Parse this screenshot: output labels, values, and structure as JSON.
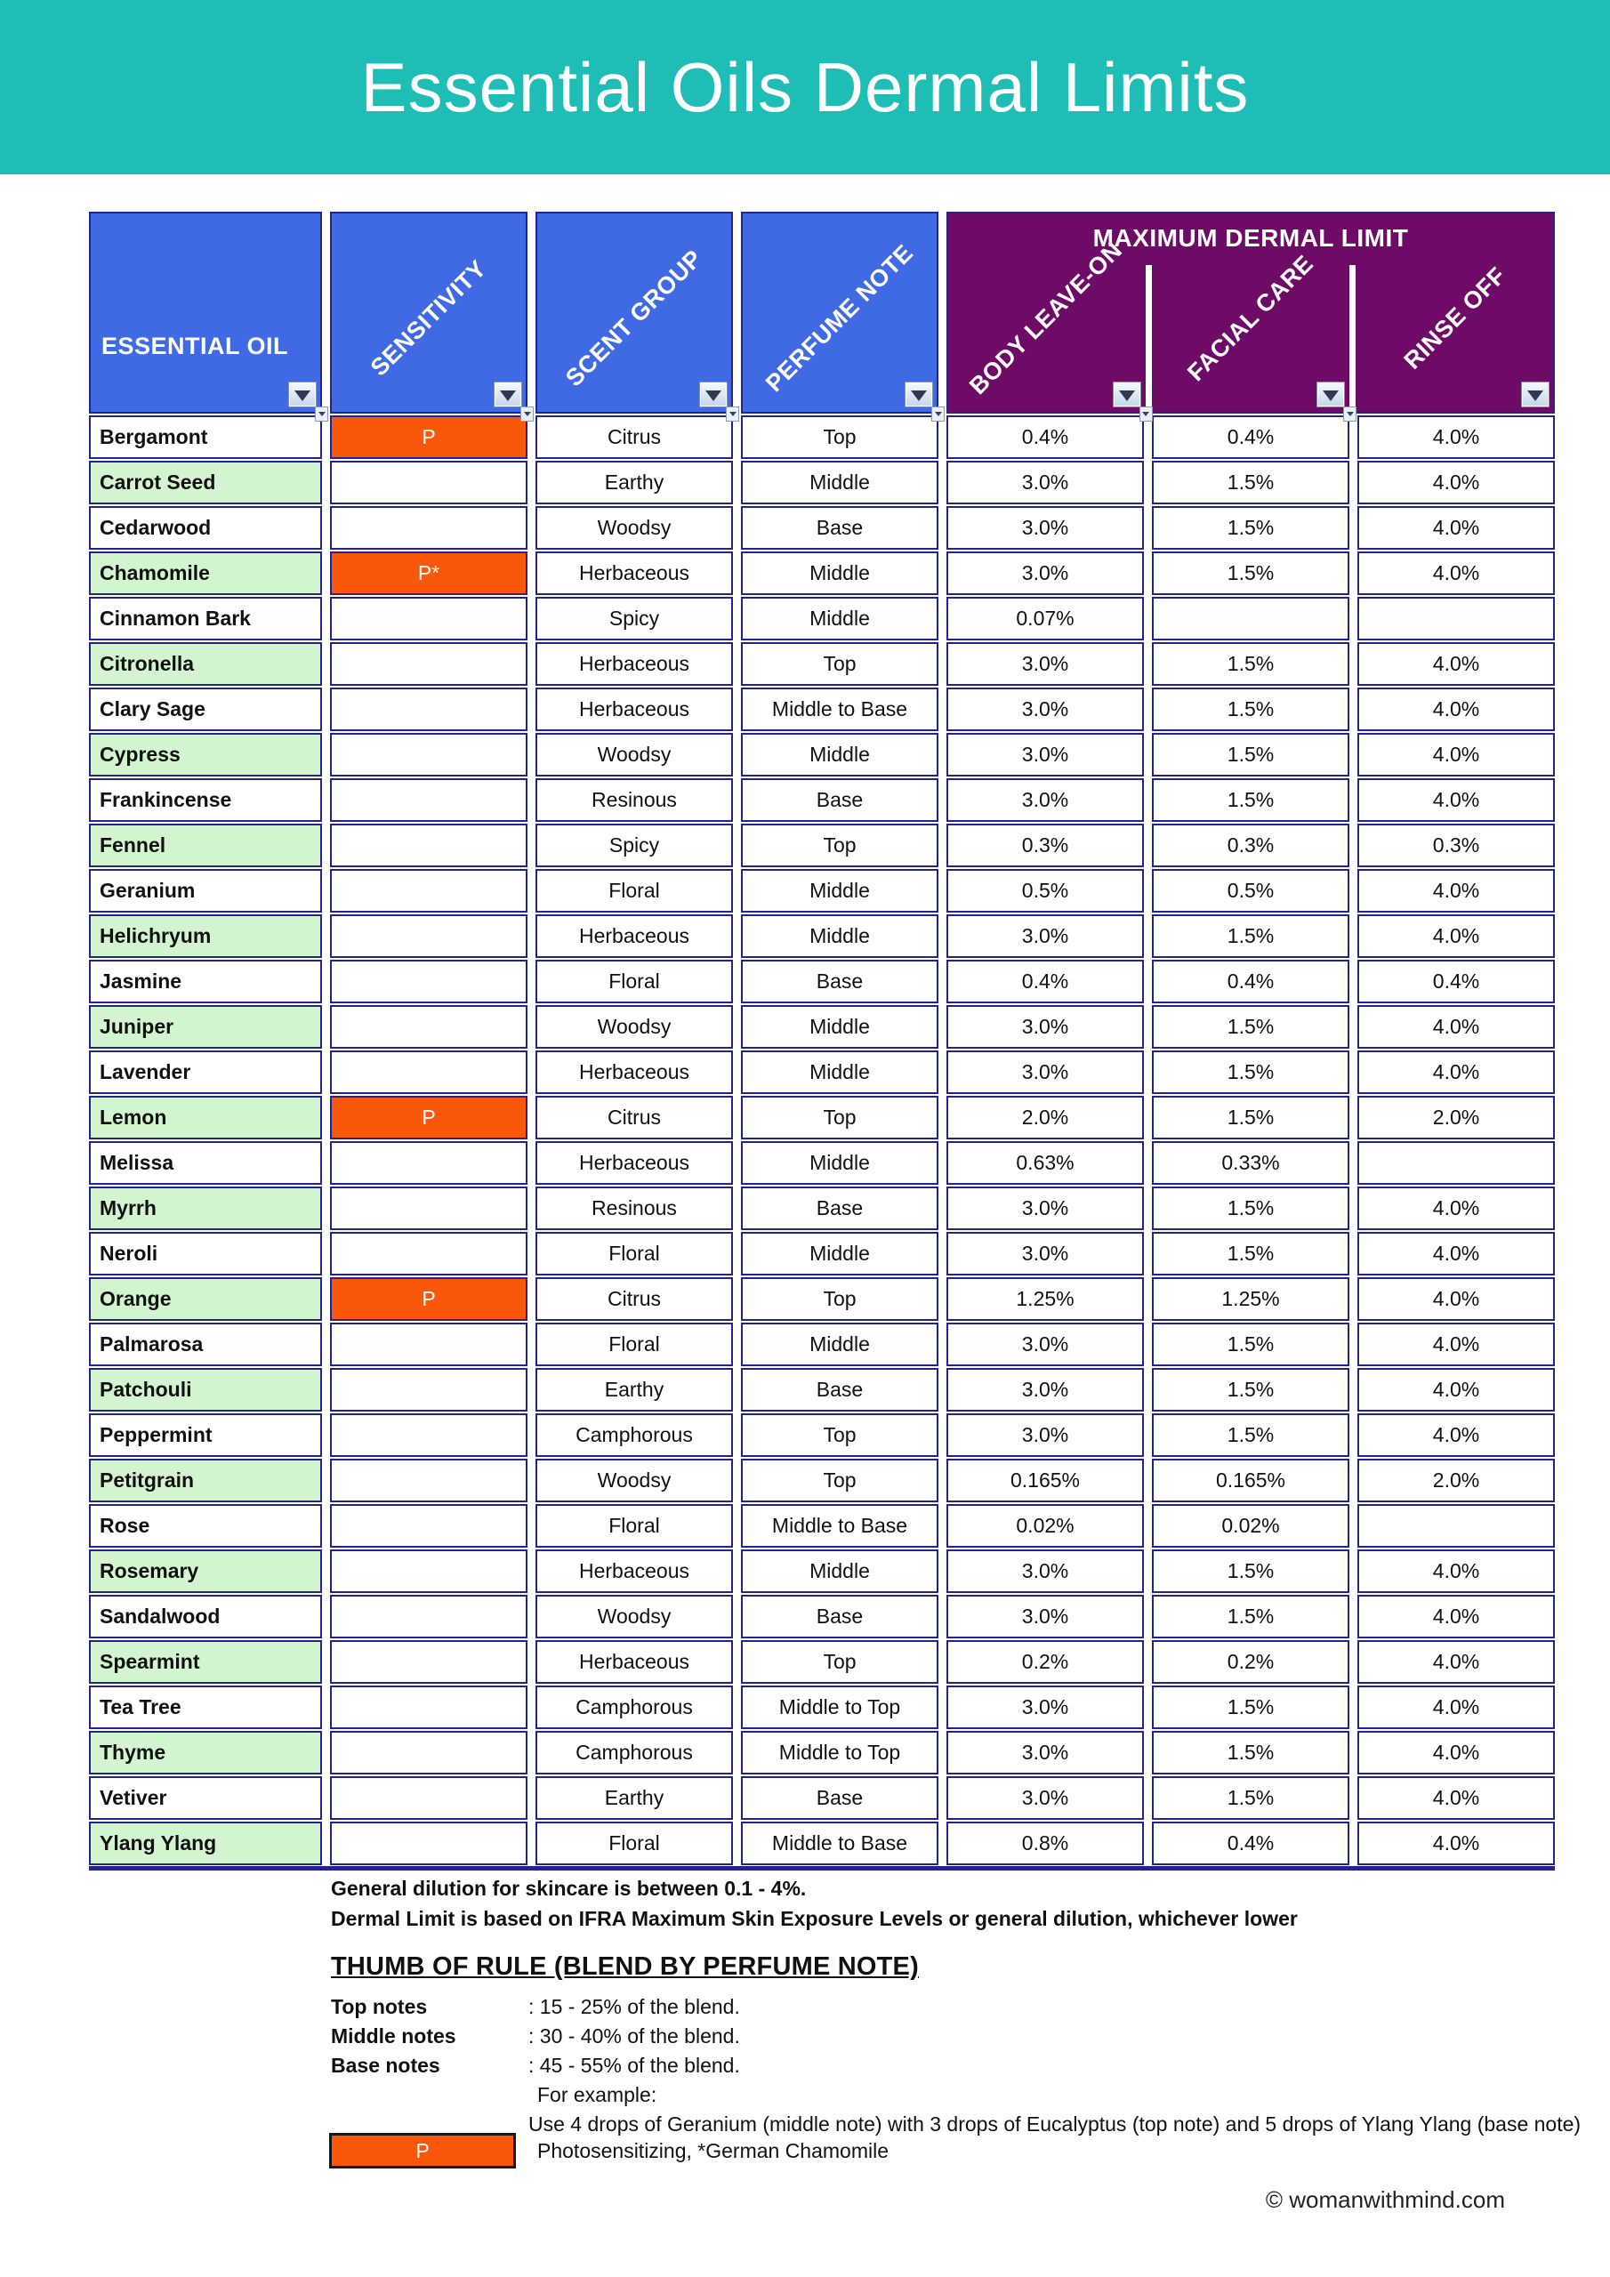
{
  "banner": {
    "title": "Essential Oils Dermal Limits"
  },
  "table": {
    "headers": {
      "essential_oil": "ESSENTIAL OIL",
      "sensitivity": "SENSITIVITY",
      "scent_group": "SCENT GROUP",
      "perfume_note": "PERFUME NOTE",
      "group": "MAXIMUM DERMAL LIMIT",
      "body_leave_on": "BODY LEAVE-ON",
      "facial_care": "FACIAL CARE",
      "rinse_off": "RINSE OFF"
    },
    "column_keys": [
      "oil",
      "sensitivity",
      "scent_group",
      "perfume_note",
      "body_leave_on",
      "facial_care",
      "rinse_off"
    ],
    "rows": [
      {
        "oil": "Bergamont",
        "sensitivity": "P",
        "scent_group": "Citrus",
        "perfume_note": "Top",
        "body_leave_on": "0.4%",
        "facial_care": "0.4%",
        "rinse_off": "4.0%"
      },
      {
        "oil": "Carrot Seed",
        "sensitivity": "",
        "scent_group": "Earthy",
        "perfume_note": "Middle",
        "body_leave_on": "3.0%",
        "facial_care": "1.5%",
        "rinse_off": "4.0%"
      },
      {
        "oil": "Cedarwood",
        "sensitivity": "",
        "scent_group": "Woodsy",
        "perfume_note": "Base",
        "body_leave_on": "3.0%",
        "facial_care": "1.5%",
        "rinse_off": "4.0%"
      },
      {
        "oil": "Chamomile",
        "sensitivity": "P*",
        "scent_group": "Herbaceous",
        "perfume_note": "Middle",
        "body_leave_on": "3.0%",
        "facial_care": "1.5%",
        "rinse_off": "4.0%"
      },
      {
        "oil": "Cinnamon Bark",
        "sensitivity": "",
        "scent_group": "Spicy",
        "perfume_note": "Middle",
        "body_leave_on": "0.07%",
        "facial_care": "",
        "rinse_off": ""
      },
      {
        "oil": "Citronella",
        "sensitivity": "",
        "scent_group": "Herbaceous",
        "perfume_note": "Top",
        "body_leave_on": "3.0%",
        "facial_care": "1.5%",
        "rinse_off": "4.0%"
      },
      {
        "oil": "Clary Sage",
        "sensitivity": "",
        "scent_group": "Herbaceous",
        "perfume_note": "Middle to Base",
        "body_leave_on": "3.0%",
        "facial_care": "1.5%",
        "rinse_off": "4.0%"
      },
      {
        "oil": "Cypress",
        "sensitivity": "",
        "scent_group": "Woodsy",
        "perfume_note": "Middle",
        "body_leave_on": "3.0%",
        "facial_care": "1.5%",
        "rinse_off": "4.0%"
      },
      {
        "oil": "Frankincense",
        "sensitivity": "",
        "scent_group": "Resinous",
        "perfume_note": "Base",
        "body_leave_on": "3.0%",
        "facial_care": "1.5%",
        "rinse_off": "4.0%"
      },
      {
        "oil": "Fennel",
        "sensitivity": "",
        "scent_group": "Spicy",
        "perfume_note": "Top",
        "body_leave_on": "0.3%",
        "facial_care": "0.3%",
        "rinse_off": "0.3%"
      },
      {
        "oil": "Geranium",
        "sensitivity": "",
        "scent_group": "Floral",
        "perfume_note": "Middle",
        "body_leave_on": "0.5%",
        "facial_care": "0.5%",
        "rinse_off": "4.0%"
      },
      {
        "oil": "Helichryum",
        "sensitivity": "",
        "scent_group": "Herbaceous",
        "perfume_note": "Middle",
        "body_leave_on": "3.0%",
        "facial_care": "1.5%",
        "rinse_off": "4.0%"
      },
      {
        "oil": "Jasmine",
        "sensitivity": "",
        "scent_group": "Floral",
        "perfume_note": "Base",
        "body_leave_on": "0.4%",
        "facial_care": "0.4%",
        "rinse_off": "0.4%"
      },
      {
        "oil": "Juniper",
        "sensitivity": "",
        "scent_group": "Woodsy",
        "perfume_note": "Middle",
        "body_leave_on": "3.0%",
        "facial_care": "1.5%",
        "rinse_off": "4.0%"
      },
      {
        "oil": "Lavender",
        "sensitivity": "",
        "scent_group": "Herbaceous",
        "perfume_note": "Middle",
        "body_leave_on": "3.0%",
        "facial_care": "1.5%",
        "rinse_off": "4.0%"
      },
      {
        "oil": "Lemon",
        "sensitivity": "P",
        "scent_group": "Citrus",
        "perfume_note": "Top",
        "body_leave_on": "2.0%",
        "facial_care": "1.5%",
        "rinse_off": "2.0%"
      },
      {
        "oil": "Melissa",
        "sensitivity": "",
        "scent_group": "Herbaceous",
        "perfume_note": "Middle",
        "body_leave_on": "0.63%",
        "facial_care": "0.33%",
        "rinse_off": ""
      },
      {
        "oil": "Myrrh",
        "sensitivity": "",
        "scent_group": "Resinous",
        "perfume_note": "Base",
        "body_leave_on": "3.0%",
        "facial_care": "1.5%",
        "rinse_off": "4.0%"
      },
      {
        "oil": "Neroli",
        "sensitivity": "",
        "scent_group": "Floral",
        "perfume_note": "Middle",
        "body_leave_on": "3.0%",
        "facial_care": "1.5%",
        "rinse_off": "4.0%"
      },
      {
        "oil": "Orange",
        "sensitivity": "P",
        "scent_group": "Citrus",
        "perfume_note": "Top",
        "body_leave_on": "1.25%",
        "facial_care": "1.25%",
        "rinse_off": "4.0%"
      },
      {
        "oil": "Palmarosa",
        "sensitivity": "",
        "scent_group": "Floral",
        "perfume_note": "Middle",
        "body_leave_on": "3.0%",
        "facial_care": "1.5%",
        "rinse_off": "4.0%"
      },
      {
        "oil": "Patchouli",
        "sensitivity": "",
        "scent_group": "Earthy",
        "perfume_note": "Base",
        "body_leave_on": "3.0%",
        "facial_care": "1.5%",
        "rinse_off": "4.0%"
      },
      {
        "oil": "Peppermint",
        "sensitivity": "",
        "scent_group": "Camphorous",
        "perfume_note": "Top",
        "body_leave_on": "3.0%",
        "facial_care": "1.5%",
        "rinse_off": "4.0%"
      },
      {
        "oil": "Petitgrain",
        "sensitivity": "",
        "scent_group": "Woodsy",
        "perfume_note": "Top",
        "body_leave_on": "0.165%",
        "facial_care": "0.165%",
        "rinse_off": "2.0%"
      },
      {
        "oil": "Rose",
        "sensitivity": "",
        "scent_group": "Floral",
        "perfume_note": "Middle to Base",
        "body_leave_on": "0.02%",
        "facial_care": "0.02%",
        "rinse_off": ""
      },
      {
        "oil": "Rosemary",
        "sensitivity": "",
        "scent_group": "Herbaceous",
        "perfume_note": "Middle",
        "body_leave_on": "3.0%",
        "facial_care": "1.5%",
        "rinse_off": "4.0%"
      },
      {
        "oil": "Sandalwood",
        "sensitivity": "",
        "scent_group": "Woodsy",
        "perfume_note": "Base",
        "body_leave_on": "3.0%",
        "facial_care": "1.5%",
        "rinse_off": "4.0%"
      },
      {
        "oil": "Spearmint",
        "sensitivity": "",
        "scent_group": "Herbaceous",
        "perfume_note": "Top",
        "body_leave_on": "0.2%",
        "facial_care": "0.2%",
        "rinse_off": "4.0%"
      },
      {
        "oil": "Tea Tree",
        "sensitivity": "",
        "scent_group": "Camphorous",
        "perfume_note": "Middle to Top",
        "body_leave_on": "3.0%",
        "facial_care": "1.5%",
        "rinse_off": "4.0%"
      },
      {
        "oil": "Thyme",
        "sensitivity": "",
        "scent_group": "Camphorous",
        "perfume_note": "Middle to Top",
        "body_leave_on": "3.0%",
        "facial_care": "1.5%",
        "rinse_off": "4.0%"
      },
      {
        "oil": "Vetiver",
        "sensitivity": "",
        "scent_group": "Earthy",
        "perfume_note": "Base",
        "body_leave_on": "3.0%",
        "facial_care": "1.5%",
        "rinse_off": "4.0%"
      },
      {
        "oil": "Ylang Ylang",
        "sensitivity": "",
        "scent_group": "Floral",
        "perfume_note": "Middle to Base",
        "body_leave_on": "0.8%",
        "facial_care": "0.4%",
        "rinse_off": "4.0%"
      }
    ]
  },
  "notes": {
    "line1": "General dilution for skincare is between 0.1 - 4%.",
    "line2": "Dermal Limit is based on IFRA Maximum Skin Exposure Levels or general dilution, whichever lower",
    "heading": "THUMB OF RULE (BLEND BY PERFUME NOTE)",
    "items": [
      {
        "label": "Top notes",
        "value": ": 15 - 25% of the blend."
      },
      {
        "label": "Middle notes",
        "value": ": 30 - 40% of the blend."
      },
      {
        "label": "Base notes",
        "value": ": 45 - 55% of the blend."
      }
    ],
    "example_label": "For example:",
    "example": "Use 4 drops of Geranium (middle note) with 3 drops of Eucalyptus (top note) and 5 drops of Ylang Ylang (base note)"
  },
  "legend": {
    "badge": "P",
    "text": "Photosensitizing, *German Chamomile"
  },
  "copyright": "© womanwithmind.com",
  "colors": {
    "banner_teal": "#1ebdb6",
    "header_blue": "#3f6ae3",
    "header_purple": "#6e0b66",
    "sensitivity_orange": "#fa570b",
    "row_green": "#d2f5cf",
    "grid_navy": "#23238d"
  }
}
